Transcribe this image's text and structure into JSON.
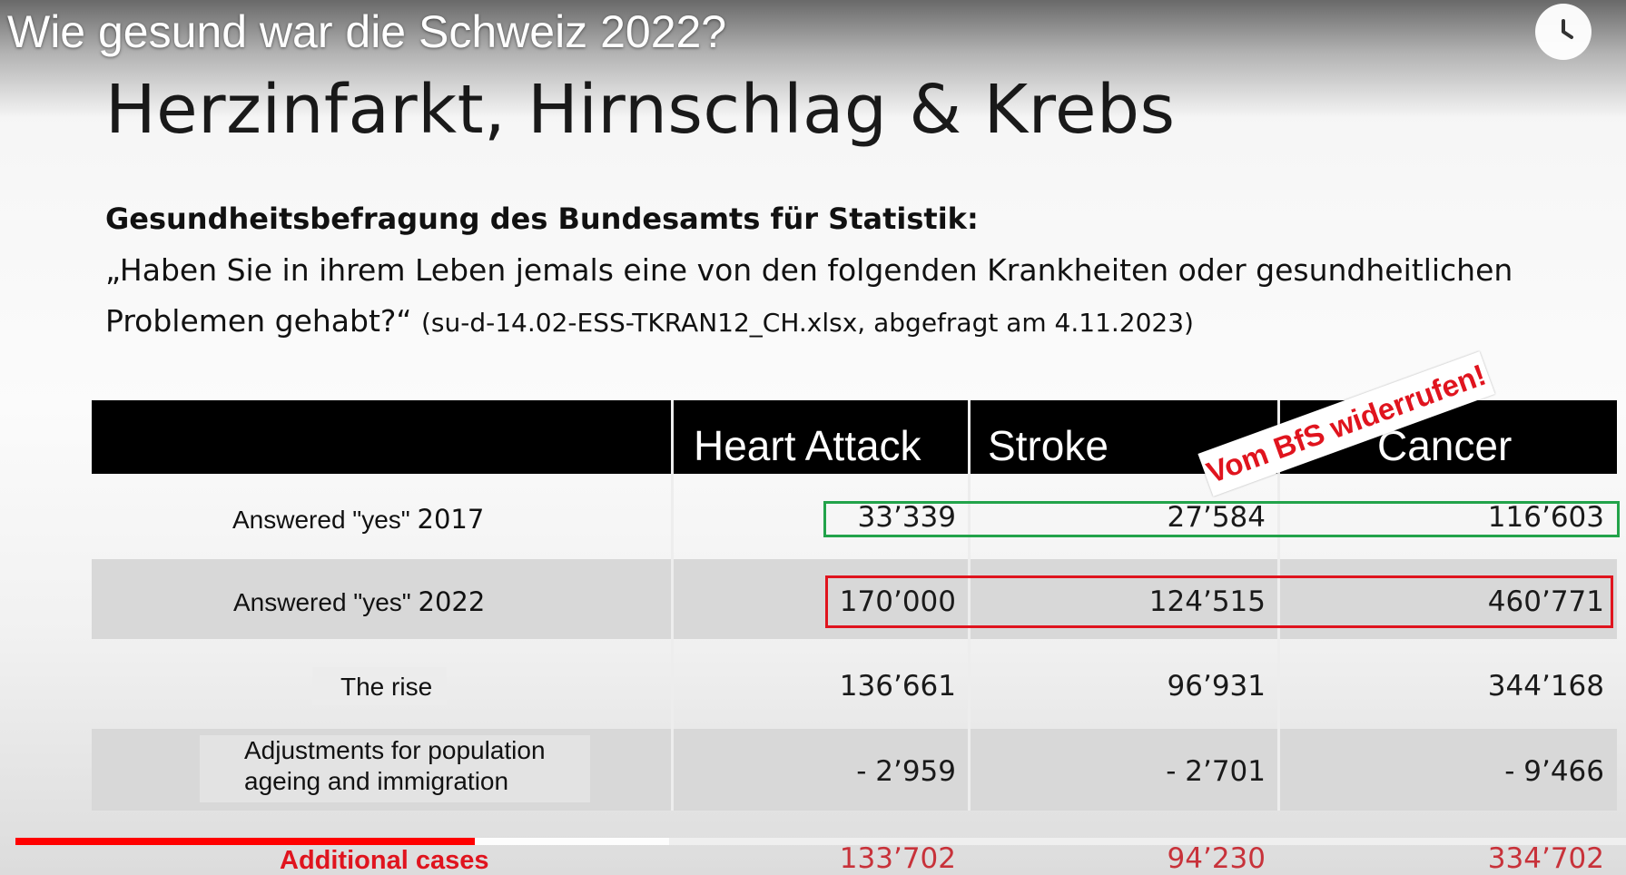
{
  "player": {
    "video_title": "Wie gesund war die Schweiz 2022?",
    "watch_later_icon": "clock-icon",
    "progress_played": 0.285,
    "progress_buffered": 0.406,
    "progress_color": "#ff0000"
  },
  "slide": {
    "title": "Herzinfarkt, Hirnschlag & Krebs",
    "survey_heading": "Gesundheitsbefragung des Bundesamts für Statistik:",
    "question_line1": "„Haben Sie in ihrem Leben jemals eine von den folgenden Krankheiten oder gesundheitlichen",
    "question_line2": "Problemen gehabt?“ ",
    "question_source": "(su-d-14.02-ESS-TKRAN12_CH.xlsx, abgefragt am 4.11.2023)",
    "stamp": "Vom BfS widerrufen!"
  },
  "table": {
    "columns": [
      "Heart Attack",
      "Stroke",
      "Cancer"
    ],
    "rows": [
      {
        "label": "Answered \"yes\" ",
        "year": "2017",
        "values": [
          "33’339",
          "27’584",
          "116’603"
        ]
      },
      {
        "label": "Answered \"yes\" ",
        "year": "2022",
        "values": [
          "170’000",
          "124’515",
          "460’771"
        ]
      },
      {
        "label": "The rise",
        "values": [
          "136’661",
          "96’931",
          "344’168"
        ]
      },
      {
        "label_line1": "Adjustments for population",
        "label_line2": "ageing and immigration",
        "values": [
          "- 2’959",
          "- 2’701",
          "- 9’466"
        ]
      },
      {
        "label": "Additional cases",
        "values": [
          "133’702",
          "94’230",
          "334’702"
        ]
      }
    ]
  },
  "colors": {
    "highlight_green": "#22a34a",
    "highlight_red": "#e0141e",
    "header_band": "#000000"
  }
}
